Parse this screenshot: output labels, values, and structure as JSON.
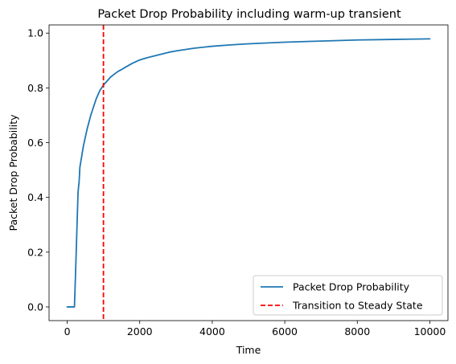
{
  "chart_data": {
    "type": "line",
    "title": "Packet Drop Probability including warm-up transient",
    "xlabel": "Time",
    "ylabel": "Packet Drop Probability",
    "xlim": [
      -500,
      10500
    ],
    "ylim": [
      -0.05,
      1.03
    ],
    "xticks": [
      0,
      2000,
      4000,
      6000,
      8000,
      10000
    ],
    "xtick_labels": [
      "0",
      "2000",
      "4000",
      "6000",
      "8000",
      "10000"
    ],
    "yticks": [
      0.0,
      0.2,
      0.4,
      0.6,
      0.8,
      1.0
    ],
    "ytick_labels": [
      "0.0",
      "0.2",
      "0.4",
      "0.6",
      "0.8",
      "1.0"
    ],
    "grid": false,
    "legend_position": "lower-right",
    "series": [
      {
        "name": "Packet Drop Probability",
        "color": "#1f77b4",
        "style": "solid",
        "x": [
          0,
          100,
          200,
          230,
          260,
          300,
          330,
          350,
          400,
          450,
          500,
          550,
          600,
          650,
          700,
          750,
          800,
          850,
          900,
          950,
          1000,
          1100,
          1200,
          1300,
          1400,
          1500,
          1600,
          1800,
          2000,
          2200,
          2500,
          2800,
          3000,
          3500,
          4000,
          4500,
          5000,
          6000,
          7000,
          8000,
          9000,
          10000
        ],
        "y": [
          0.0,
          0.0,
          0.0,
          0.12,
          0.25,
          0.42,
          0.46,
          0.51,
          0.55,
          0.59,
          0.62,
          0.65,
          0.675,
          0.7,
          0.72,
          0.74,
          0.76,
          0.775,
          0.79,
          0.8,
          0.81,
          0.825,
          0.84,
          0.85,
          0.86,
          0.867,
          0.875,
          0.89,
          0.902,
          0.91,
          0.92,
          0.93,
          0.935,
          0.945,
          0.952,
          0.957,
          0.961,
          0.967,
          0.971,
          0.975,
          0.977,
          0.979
        ]
      },
      {
        "name": "Transition to Steady State",
        "color": "#ff0000",
        "style": "dashed",
        "vline_x": 1000
      }
    ]
  }
}
